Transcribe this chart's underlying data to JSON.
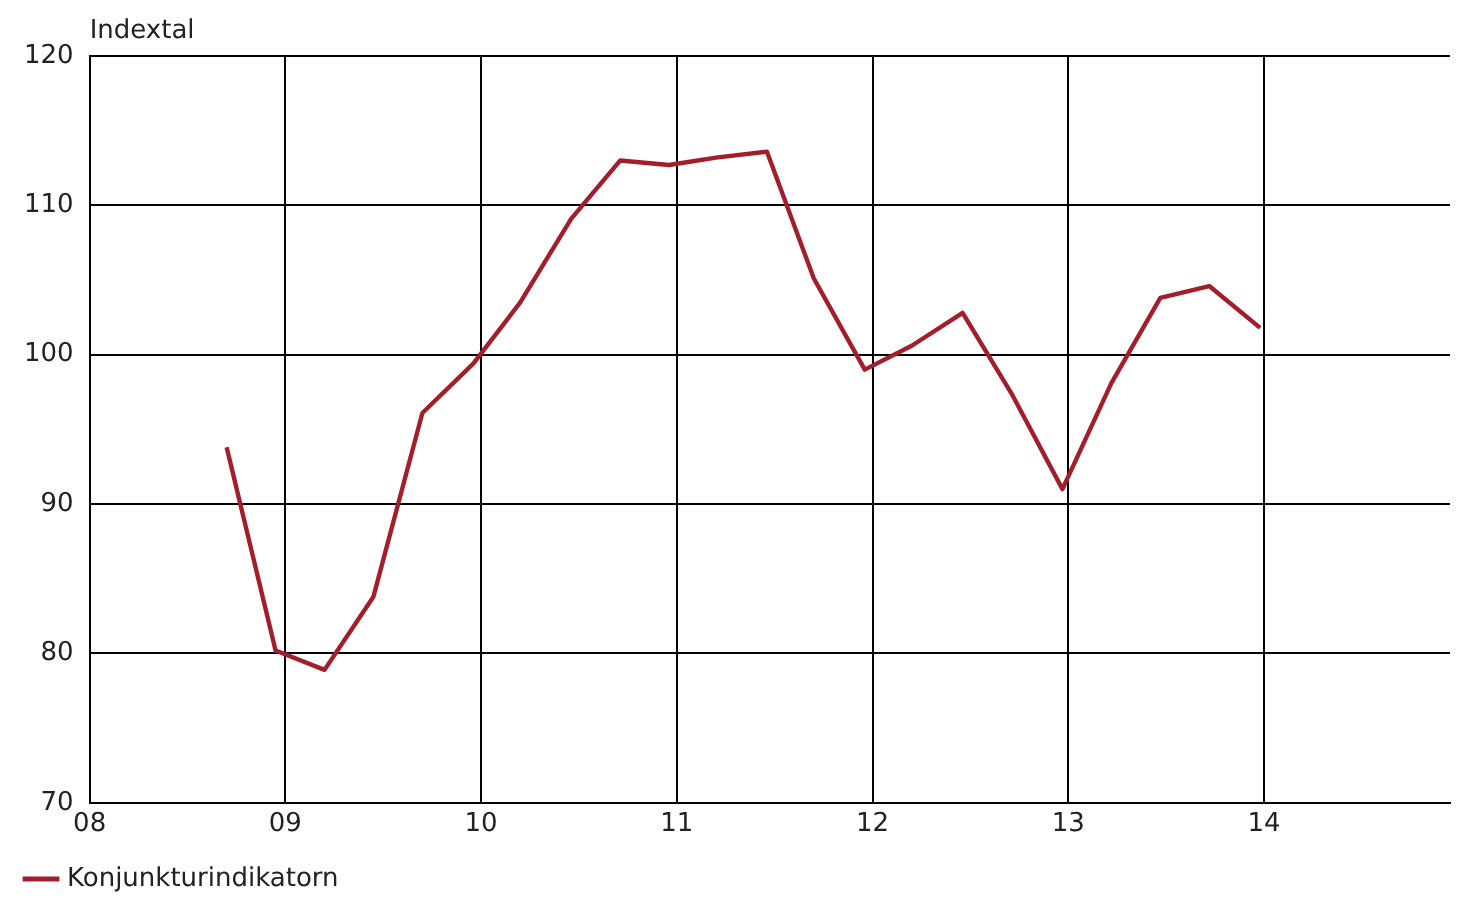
{
  "chart_data": {
    "type": "line",
    "ylabel": "Indextal",
    "x": [
      8.7,
      8.95,
      9.2,
      9.45,
      9.7,
      9.96,
      10.2,
      10.46,
      10.71,
      10.96,
      11.2,
      11.46,
      11.7,
      11.96,
      12.2,
      12.46,
      12.71,
      12.97,
      13.22,
      13.47,
      13.72,
      13.98
    ],
    "series": [
      {
        "name": "Konjunkturindikatorn",
        "color": "#a31e2b",
        "values": [
          93.8,
          80.2,
          78.9,
          83.8,
          96.1,
          99.4,
          103.5,
          109.1,
          113.0,
          112.7,
          113.2,
          113.6,
          105.1,
          99.0,
          100.6,
          102.8,
          97.4,
          91.0,
          98.1,
          103.8,
          104.6,
          101.8
        ]
      }
    ],
    "xlim": [
      8,
      14.95
    ],
    "xticks": [
      {
        "value": 8,
        "label": "08"
      },
      {
        "value": 9,
        "label": "09"
      },
      {
        "value": 10,
        "label": "10"
      },
      {
        "value": 11,
        "label": "11"
      },
      {
        "value": 12,
        "label": "12"
      },
      {
        "value": 13,
        "label": "13"
      },
      {
        "value": 14,
        "label": "14"
      }
    ],
    "ylim": [
      70,
      120
    ],
    "yticks": [
      70,
      80,
      90,
      100,
      110,
      120
    ],
    "grid": true,
    "legend": "bottom left",
    "marker": "none",
    "line_style": "solid"
  }
}
